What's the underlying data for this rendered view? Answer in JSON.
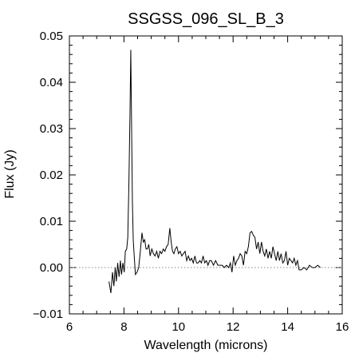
{
  "chart_data": {
    "type": "line",
    "title": "SSGSS_096_SL_B_3",
    "xlabel": "Wavelength (microns)",
    "ylabel": "Flux (Jy)",
    "xlim": [
      6,
      16
    ],
    "ylim": [
      -0.01,
      0.05
    ],
    "xticks": [
      6,
      8,
      10,
      12,
      14,
      16
    ],
    "xtick_labels": [
      "6",
      "8",
      "10",
      "12",
      "14",
      "16"
    ],
    "yticks": [
      -0.01,
      0.0,
      0.01,
      0.02,
      0.03,
      0.04,
      0.05
    ],
    "ytick_labels": [
      "−0.01",
      "0.00",
      "0.01",
      "0.02",
      "0.03",
      "0.04",
      "0.05"
    ],
    "reference_line": {
      "y": 0.0,
      "style": "dotted"
    },
    "grid": false,
    "line_color": "#000000",
    "series": [
      {
        "x": [
          7.45,
          7.52,
          7.58,
          7.63,
          7.68,
          7.72,
          7.77,
          7.82,
          7.87,
          7.91,
          7.96,
          8.01,
          8.05,
          8.1,
          8.14,
          8.18,
          8.22,
          8.25,
          8.28,
          8.31,
          8.34,
          8.37,
          8.42,
          8.48,
          8.54,
          8.6,
          8.66,
          8.71,
          8.76,
          8.81,
          8.86,
          8.91,
          8.96,
          9.02,
          9.08,
          9.14,
          9.2,
          9.26,
          9.32,
          9.38,
          9.44,
          9.5,
          9.56,
          9.62,
          9.68,
          9.73,
          9.78,
          9.83,
          9.88,
          9.94,
          10.0,
          10.06,
          10.12,
          10.18,
          10.24,
          10.3,
          10.36,
          10.42,
          10.48,
          10.54,
          10.6,
          10.66,
          10.72,
          10.78,
          10.84,
          10.9,
          10.96,
          11.02,
          11.08,
          11.14,
          11.2,
          11.28,
          11.36,
          11.44,
          11.52,
          11.6,
          11.68,
          11.76,
          11.84,
          11.9,
          11.96,
          12.02,
          12.08,
          12.14,
          12.2,
          12.26,
          12.32,
          12.38,
          12.44,
          12.5,
          12.56,
          12.62,
          12.68,
          12.74,
          12.8,
          12.86,
          12.92,
          12.98,
          13.04,
          13.1,
          13.16,
          13.22,
          13.28,
          13.34,
          13.4,
          13.46,
          13.52,
          13.58,
          13.64,
          13.7,
          13.76,
          13.82,
          13.88,
          13.94,
          14.0,
          14.06,
          14.12,
          14.18,
          14.24,
          14.3,
          14.36,
          14.42,
          14.5,
          14.6,
          14.7,
          14.8,
          14.9,
          15.0,
          15.1,
          15.2
        ],
        "y": [
          -0.003,
          -0.0055,
          -0.001,
          -0.004,
          0.0,
          -0.003,
          0.001,
          -0.002,
          0.0015,
          -0.0015,
          0.001,
          -0.001,
          0.0035,
          0.004,
          0.0065,
          0.018,
          0.033,
          0.047,
          0.03,
          0.014,
          0.006,
          0.003,
          -0.0015,
          -0.001,
          0.0,
          0.0035,
          0.0075,
          0.0055,
          0.006,
          0.004,
          0.004,
          0.005,
          0.0025,
          0.004,
          0.003,
          0.0025,
          0.0035,
          0.002,
          0.0035,
          0.003,
          0.004,
          0.0035,
          0.0045,
          0.005,
          0.0085,
          0.0055,
          0.0035,
          0.003,
          0.004,
          0.0045,
          0.003,
          0.0035,
          0.0025,
          0.003,
          0.0035,
          0.0015,
          0.0025,
          0.0015,
          0.002,
          0.001,
          0.0025,
          0.001,
          0.001,
          0.0015,
          0.001,
          0.0025,
          0.001,
          0.0015,
          0.0005,
          0.0015,
          0.0015,
          0.0005,
          0.0015,
          0.0005,
          0.0005,
          0.0005,
          0.0,
          0.0005,
          0.0,
          0.001,
          -0.001,
          0.0025,
          0.0005,
          0.0015,
          0.002,
          0.003,
          0.0025,
          0.0005,
          0.0035,
          0.003,
          0.0045,
          0.0075,
          0.0078,
          0.007,
          0.0065,
          0.004,
          0.0055,
          0.003,
          0.0055,
          0.0035,
          0.0025,
          0.004,
          0.002,
          0.0035,
          0.002,
          0.0045,
          0.003,
          0.0015,
          0.0035,
          0.0015,
          0.003,
          0.001,
          0.0015,
          0.0035,
          0.0005,
          0.002,
          0.0015,
          0.001,
          0.002,
          0.0005,
          0.0015,
          -0.0005,
          -0.0005,
          0.0,
          -0.0005,
          0.0005,
          0.0,
          0.0,
          0.0005,
          0.0
        ]
      }
    ]
  }
}
